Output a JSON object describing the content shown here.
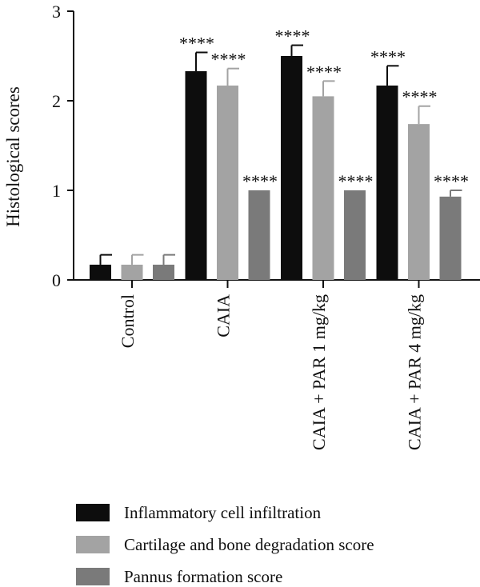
{
  "chart_data": {
    "type": "bar",
    "title": "",
    "xlabel": "",
    "ylabel": "Histological scores",
    "ylim": [
      0,
      3
    ],
    "yticks": [
      0,
      1,
      2,
      3
    ],
    "categories": [
      "Control",
      "CAIA",
      "CAIA + PAR 1 mg/kg",
      "CAIA + PAR 4 mg/kg"
    ],
    "series": [
      {
        "name": "Inflammatory cell infiltration",
        "color": "#0d0d0d",
        "values": [
          0.17,
          2.33,
          2.5,
          2.17
        ],
        "errors": [
          0.11,
          0.21,
          0.12,
          0.22
        ],
        "significance": [
          "",
          "****",
          "****",
          "****"
        ]
      },
      {
        "name": "Cartilage and bone degradation score",
        "color": "#a3a3a3",
        "values": [
          0.17,
          2.17,
          2.05,
          1.74
        ],
        "errors": [
          0.11,
          0.19,
          0.17,
          0.2
        ],
        "significance": [
          "",
          "****",
          "****",
          "****"
        ]
      },
      {
        "name": "Pannus formation score",
        "color": "#7a7a7a",
        "values": [
          0.17,
          1.0,
          1.0,
          0.93
        ],
        "errors": [
          0.11,
          0.0,
          0.0,
          0.07
        ],
        "significance": [
          "",
          "****",
          "****",
          "****"
        ]
      }
    ],
    "legend": {
      "position": "bottom"
    },
    "grid": false
  }
}
